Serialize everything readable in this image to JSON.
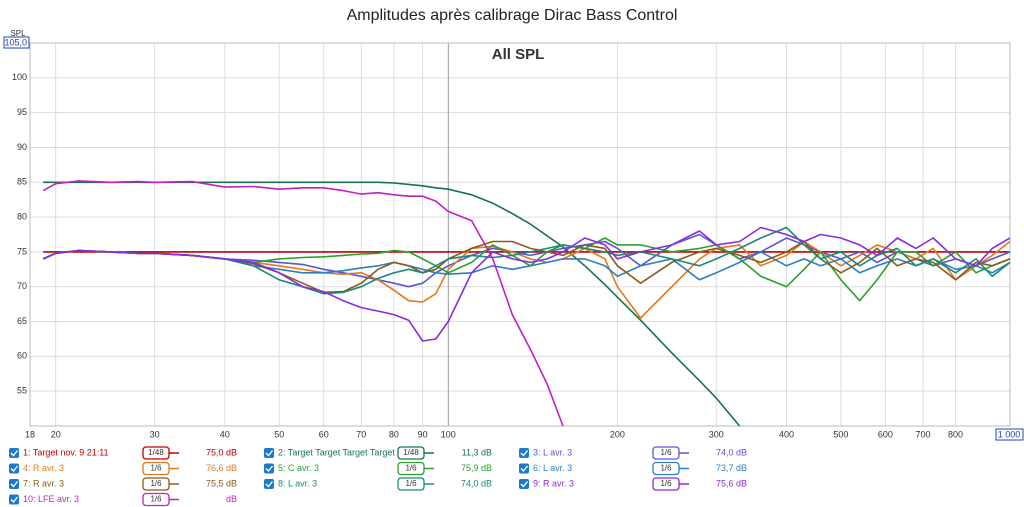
{
  "chart_data": {
    "type": "line",
    "title": "Amplitudes après calibrage Dirac Bass Control",
    "subtitle": "All SPL",
    "y_label": "SPL",
    "log_x": true,
    "grid": true,
    "xlim": [
      18,
      1000
    ],
    "ylim": [
      50,
      105
    ],
    "xticks": [
      18,
      20,
      30,
      40,
      50,
      60,
      70,
      80,
      90,
      100,
      200,
      300,
      400,
      500,
      600,
      700,
      800,
      {
        "value": 1000,
        "label": "1 000"
      }
    ],
    "yticks": [
      55,
      60,
      65,
      70,
      75,
      80,
      85,
      90,
      95,
      100,
      {
        "value": 105,
        "label": "105,0"
      }
    ],
    "x": [
      19,
      20,
      22,
      25,
      28,
      30,
      35,
      40,
      45,
      50,
      55,
      60,
      65,
      70,
      75,
      80,
      85,
      90,
      95,
      100,
      110,
      120,
      130,
      140,
      150,
      160,
      175,
      190,
      200,
      220,
      250,
      280,
      300,
      330,
      360,
      400,
      430,
      460,
      500,
      540,
      580,
      630,
      680,
      730,
      800,
      870,
      930,
      1000
    ],
    "series": [
      {
        "name": "1: Target nov. 9 21:11",
        "color": "#c00000",
        "smoothing": "1/48",
        "level": "75,0 dB",
        "values": [
          75,
          75,
          75,
          75,
          75,
          75,
          75,
          75,
          75,
          75,
          75,
          75,
          75,
          75,
          75,
          75,
          75,
          75,
          75,
          75,
          75,
          75,
          75,
          75,
          75,
          75,
          75,
          75,
          75,
          75,
          75,
          75,
          75,
          75,
          75,
          75,
          75,
          75,
          75,
          75,
          75,
          75,
          75,
          75,
          75,
          75,
          75,
          75
        ]
      },
      {
        "name": "2: Target Target Target Target T",
        "color": "#17734a",
        "smoothing": "1/48",
        "level": "11,3 dB",
        "values": [
          85,
          85,
          85,
          85,
          85,
          85,
          85,
          85,
          85,
          85,
          85,
          85,
          85,
          85,
          85,
          84.9,
          84.7,
          84.5,
          84.2,
          84,
          83.2,
          82,
          80.5,
          79,
          77.3,
          75.7,
          73,
          70.3,
          68.5,
          65.2,
          60.5,
          56.5,
          54,
          50,
          null,
          null,
          null,
          null,
          null,
          null,
          null,
          null,
          null,
          null,
          null,
          null,
          null,
          null
        ]
      },
      {
        "name": "3: L avr. 3",
        "color": "#5a55d6",
        "smoothing": "1/6",
        "level": "74,0 dB",
        "values": [
          74,
          74.8,
          75.2,
          75,
          74.8,
          74.8,
          74.5,
          74,
          73.8,
          73.5,
          73.2,
          72.5,
          72,
          71.5,
          71,
          70.5,
          70,
          70.5,
          72,
          73,
          74.5,
          75.5,
          75,
          74.5,
          75,
          75.5,
          76,
          76.5,
          75.5,
          73,
          76,
          77.5,
          76,
          74,
          75,
          77,
          76,
          75,
          74,
          75,
          73.5,
          75,
          74,
          73,
          74,
          73,
          74,
          75
        ]
      },
      {
        "name": "4: R avr. 3",
        "color": "#e6781e",
        "smoothing": "1/6",
        "level": "76,6 dB",
        "values": [
          74,
          74.8,
          75.2,
          75,
          74.8,
          74.8,
          74.5,
          74,
          73.5,
          73,
          72.5,
          72,
          71.8,
          72,
          71,
          69.5,
          68,
          67.8,
          69,
          72.5,
          75.5,
          75.8,
          75,
          74,
          73.5,
          74,
          75.5,
          74,
          70,
          65.5,
          70,
          74,
          75.5,
          76,
          73,
          74.5,
          76.5,
          75,
          73,
          74.5,
          76,
          75,
          74,
          75.5,
          71,
          73,
          74.5,
          76.5
        ]
      },
      {
        "name": "5: C avr. 3",
        "color": "#2ca02c",
        "smoothing": "1/6",
        "level": "75,9 dB",
        "values": [
          74,
          74.8,
          75.2,
          75,
          74.8,
          74.8,
          74.5,
          74,
          73.5,
          74,
          74.2,
          74.3,
          74.5,
          74.7,
          74.8,
          75.2,
          75,
          74,
          73,
          72,
          73.5,
          76,
          74.5,
          73,
          75,
          76,
          75.5,
          77,
          76,
          76,
          75,
          75.5,
          76,
          74,
          71.5,
          70,
          72.5,
          75,
          71,
          68,
          71,
          75,
          75,
          73,
          75,
          72,
          73,
          74
        ]
      },
      {
        "name": "6: L avr. 3",
        "color": "#2e7fc0",
        "smoothing": "1/6",
        "level": "73,7 dB",
        "values": [
          74,
          74.8,
          75.2,
          75,
          74.8,
          74.8,
          74.5,
          74,
          73,
          72.5,
          72,
          72,
          72.3,
          72.7,
          73,
          73.5,
          73,
          72.5,
          72,
          71.8,
          72,
          73,
          72.5,
          73,
          73.5,
          74,
          74,
          73,
          71.5,
          73,
          74,
          71,
          72,
          73.5,
          75,
          73,
          74,
          73,
          74,
          72,
          73,
          74,
          73,
          74,
          72.5,
          73,
          72,
          73.5
        ]
      },
      {
        "name": "7: R avr. 3",
        "color": "#8b5a1a",
        "smoothing": "1/6",
        "level": "75,5 dB",
        "values": [
          74,
          74.8,
          75.2,
          75,
          74.8,
          74.8,
          74.5,
          74,
          73.3,
          72,
          70.5,
          69.2,
          69.3,
          70.5,
          72.5,
          73.5,
          73,
          72,
          72.5,
          74,
          75.5,
          76.5,
          76.5,
          75.5,
          75,
          74.5,
          76,
          75.5,
          73,
          70.5,
          73.5,
          75,
          75.5,
          74.5,
          73.5,
          75,
          76.5,
          74,
          72,
          73.5,
          75.5,
          73,
          74,
          73.5,
          71,
          73.5,
          73,
          74
        ]
      },
      {
        "name": "8: L avr. 3",
        "color": "#1a8a7a",
        "smoothing": "1/6",
        "level": "74,0 dB",
        "values": [
          74,
          74.8,
          75.2,
          75,
          74.8,
          74.8,
          74.5,
          74,
          73,
          71,
          70,
          69,
          69.2,
          70,
          71.2,
          72,
          72.5,
          72,
          73,
          74,
          74.5,
          74.2,
          74.5,
          75,
          75.5,
          76,
          75.5,
          75,
          74.5,
          75,
          74,
          73,
          74,
          75.5,
          77,
          78.5,
          76,
          74,
          75,
          73,
          74.5,
          75.5,
          73,
          74,
          72,
          74,
          71.5,
          73.5
        ]
      },
      {
        "name": "9: R avr. 3",
        "color": "#8a2be2",
        "smoothing": "1/6",
        "level": "75,6 dB",
        "values": [
          74,
          74.8,
          75.2,
          75,
          74.8,
          74.8,
          74.5,
          74,
          73.5,
          72,
          70,
          69.3,
          68,
          67,
          66.5,
          66,
          65.2,
          62.2,
          62.5,
          65,
          72,
          75,
          74,
          73.5,
          74,
          75,
          77,
          76,
          74,
          75,
          76,
          78,
          76,
          76.5,
          78.5,
          77.5,
          76.5,
          77.5,
          77,
          76,
          74.5,
          77,
          75.5,
          77,
          74,
          73,
          75.5,
          77
        ]
      },
      {
        "name": "10: LFE avr. 3",
        "color": "#c41fc4",
        "smoothing": "1/6",
        "level": "dB",
        "values": [
          83.8,
          84.8,
          85.2,
          85,
          85.1,
          85,
          85.1,
          84.3,
          84.4,
          84,
          84.2,
          84.2,
          83.8,
          83.3,
          83.5,
          83.2,
          83,
          83,
          82.3,
          80.8,
          79.5,
          74,
          66,
          61,
          56,
          50,
          null,
          null,
          null,
          null,
          null,
          null,
          null,
          null,
          null,
          null,
          null,
          null,
          null,
          null,
          null,
          null,
          null,
          null,
          null,
          null,
          null,
          null
        ]
      }
    ]
  }
}
